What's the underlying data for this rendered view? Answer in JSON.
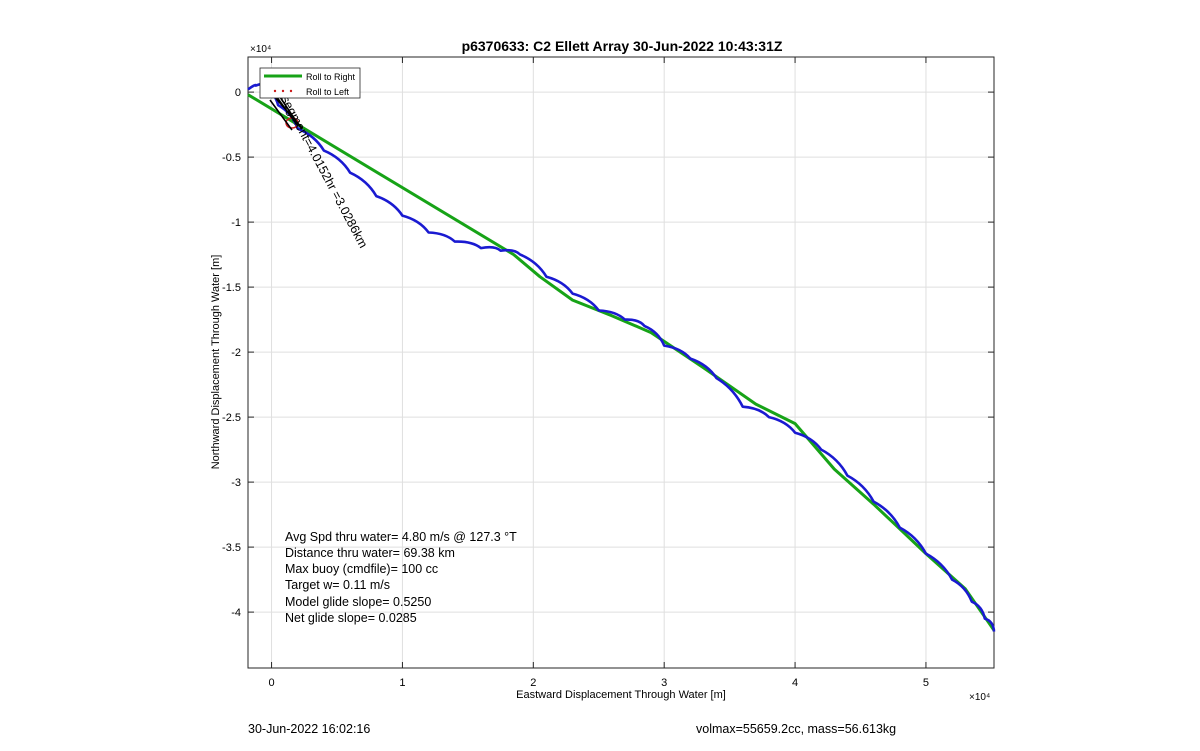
{
  "chart_data": {
    "type": "line",
    "title": "p6370633: C2 Ellett Array 30-Jun-2022 10:43:31Z",
    "xlabel": "Eastward Displacement Through Water [m]",
    "ylabel": "Northward Displacement Through Water [m]",
    "x_exponent_label": "×10⁴",
    "y_exponent_label": "×10⁴",
    "xlim": [
      -0.18,
      5.52
    ],
    "ylim": [
      -4.43,
      0.27
    ],
    "x_ticks": [
      0,
      1,
      2,
      3,
      4,
      5
    ],
    "x_tick_labels": [
      "0",
      "1",
      "2",
      "3",
      "4",
      "5"
    ],
    "y_ticks": [
      0,
      -0.5,
      -1,
      -1.5,
      -2,
      -2.5,
      -3,
      -3.5,
      -4
    ],
    "y_tick_labels": [
      "0",
      "-0.5",
      "-1",
      "-1.5",
      "-2",
      "-2.5",
      "-3",
      "-3.5",
      "-4"
    ],
    "grid": true,
    "legend": {
      "placement": "top-left",
      "entries": [
        {
          "label": "Roll to Right",
          "color": "#17a317",
          "style": "line"
        },
        {
          "label": "Roll to Left",
          "color": "#cc1a1a",
          "style": "dots"
        }
      ]
    },
    "series": [
      {
        "color": "#17a317",
        "x": [
          -0.18,
          1.85,
          2.05,
          2.3,
          2.6,
          2.9,
          3.3,
          3.7,
          4.0,
          4.3,
          4.6,
          5.0,
          5.3,
          5.52
        ],
        "y": [
          -0.02,
          -1.25,
          -1.42,
          -1.6,
          -1.72,
          -1.85,
          -2.12,
          -2.4,
          -2.55,
          -2.9,
          -3.17,
          -3.55,
          -3.82,
          -4.14
        ]
      },
      {
        "color": "#1a1ad1",
        "x": [
          -0.18,
          -0.12,
          -0.06,
          0.05,
          0.2,
          0.4,
          0.6,
          0.8,
          1.0,
          1.2,
          1.4,
          1.6,
          1.75,
          1.9,
          2.1,
          2.3,
          2.5,
          2.7,
          2.85,
          3.0,
          3.2,
          3.4,
          3.6,
          3.8,
          4.0,
          4.2,
          4.4,
          4.6,
          4.8,
          5.0,
          5.2,
          5.35,
          5.45,
          5.52
        ],
        "y": [
          0.02,
          0.05,
          0.04,
          -0.1,
          -0.28,
          -0.45,
          -0.62,
          -0.8,
          -0.95,
          -1.08,
          -1.15,
          -1.2,
          -1.22,
          -1.25,
          -1.42,
          -1.55,
          -1.68,
          -1.75,
          -1.8,
          -1.95,
          -2.05,
          -2.2,
          -2.42,
          -2.5,
          -2.62,
          -2.75,
          -2.95,
          -3.15,
          -3.35,
          -3.55,
          -3.75,
          -3.92,
          -4.05,
          -4.15
        ]
      }
    ],
    "segment_annotation": {
      "text": "segment=4.0152hr =3.0286km",
      "at": [
        0.07,
        -0.05
      ],
      "rotation_deg": 62
    },
    "text_box": [
      "Avg Spd thru water=  4.80 m/s @ 127.3 °T",
      "Distance thru water= 69.38 km",
      "Max buoy (cmdfile)= 100 cc",
      "Target w= 0.11 m/s",
      "Model glide slope= 0.5250",
      "Net glide slope= 0.0285"
    ]
  },
  "footer": {
    "date": "30-Jun-2022 16:02:16",
    "volmass": "volmax=55659.2cc, mass=56.613kg"
  }
}
